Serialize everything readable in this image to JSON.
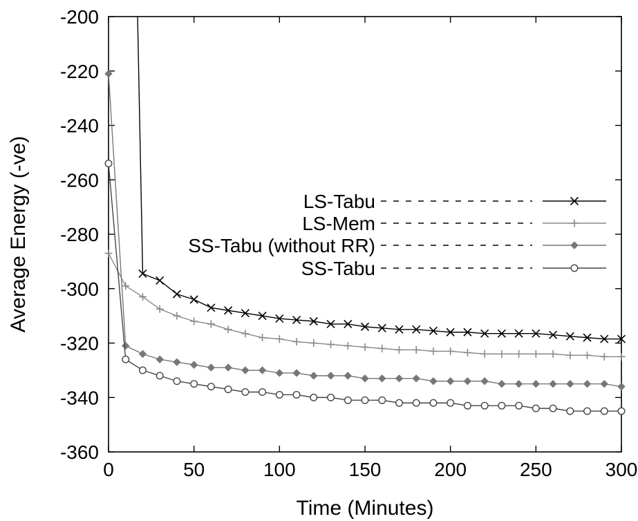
{
  "chart_data": {
    "type": "line",
    "title": "",
    "xlabel": "Time (Minutes)",
    "ylabel": "Average Energy (-ve)",
    "xlim": [
      0,
      300
    ],
    "ylim": [
      -360,
      -200
    ],
    "xticks": [
      0,
      50,
      100,
      150,
      200,
      250,
      300
    ],
    "yticks": [
      -360,
      -340,
      -320,
      -300,
      -280,
      -260,
      -240,
      -220,
      -200
    ],
    "grid": false,
    "legend_position": "right",
    "series": [
      {
        "name": "LS-Tabu",
        "color": "#000000",
        "marker": "x",
        "x": [
          20,
          30,
          40,
          50,
          60,
          70,
          80,
          90,
          100,
          110,
          120,
          130,
          140,
          150,
          160,
          170,
          180,
          190,
          200,
          210,
          220,
          230,
          240,
          250,
          260,
          270,
          280,
          290,
          300
        ],
        "y": [
          -294.5,
          -297,
          -302,
          -304,
          -307,
          -308,
          -309,
          -310,
          -311,
          -311.5,
          -312,
          -313,
          -313,
          -314,
          -314.5,
          -315,
          -315,
          -315.5,
          -316,
          -316,
          -316.5,
          -316.5,
          -316.5,
          -316.5,
          -317,
          -317.5,
          -318,
          -318.5,
          -318.5
        ],
        "entry_line": {
          "x": [
            17,
            20
          ],
          "y": [
            -200,
            -294.5
          ]
        }
      },
      {
        "name": "LS-Mem",
        "color": "#888888",
        "marker": "+",
        "x": [
          0,
          10,
          20,
          30,
          40,
          50,
          60,
          70,
          80,
          90,
          100,
          110,
          120,
          130,
          140,
          150,
          160,
          170,
          180,
          190,
          200,
          210,
          220,
          230,
          240,
          250,
          260,
          270,
          280,
          290,
          300
        ],
        "y": [
          -287,
          -299,
          -303,
          -307.5,
          -310,
          -312,
          -313,
          -315,
          -316.5,
          -318,
          -318.5,
          -319.5,
          -320,
          -320.5,
          -321,
          -321.5,
          -322,
          -322.5,
          -322.5,
          -323,
          -323,
          -323.5,
          -324,
          -324,
          -324,
          -324,
          -324,
          -324.5,
          -324.5,
          -325,
          -325
        ]
      },
      {
        "name": "SS-Tabu (without RR)",
        "color": "#777777",
        "marker": "diamond",
        "x": [
          0,
          10,
          20,
          30,
          40,
          50,
          60,
          70,
          80,
          90,
          100,
          110,
          120,
          130,
          140,
          150,
          160,
          170,
          180,
          190,
          200,
          210,
          220,
          230,
          240,
          250,
          260,
          270,
          280,
          290,
          300
        ],
        "y": [
          -221,
          -321,
          -324,
          -326,
          -327,
          -328,
          -329,
          -329,
          -330,
          -330,
          -331,
          -331,
          -332,
          -332,
          -332,
          -333,
          -333,
          -333,
          -333,
          -334,
          -334,
          -334,
          -334,
          -335,
          -335,
          -335,
          -335,
          -335,
          -335,
          -335,
          -336
        ]
      },
      {
        "name": "SS-Tabu",
        "color": "#444444",
        "marker": "circle",
        "x": [
          0,
          10,
          20,
          30,
          40,
          50,
          60,
          70,
          80,
          90,
          100,
          110,
          120,
          130,
          140,
          150,
          160,
          170,
          180,
          190,
          200,
          210,
          220,
          230,
          240,
          250,
          260,
          270,
          280,
          290,
          300
        ],
        "y": [
          -254,
          -326,
          -330,
          -332,
          -334,
          -335,
          -336,
          -337,
          -338,
          -338,
          -339,
          -339,
          -340,
          -340,
          -341,
          -341,
          -341,
          -342,
          -342,
          -342,
          -342,
          -343,
          -343,
          -343,
          -343,
          -344,
          -344,
          -345,
          -345,
          -345,
          -345
        ]
      }
    ]
  }
}
